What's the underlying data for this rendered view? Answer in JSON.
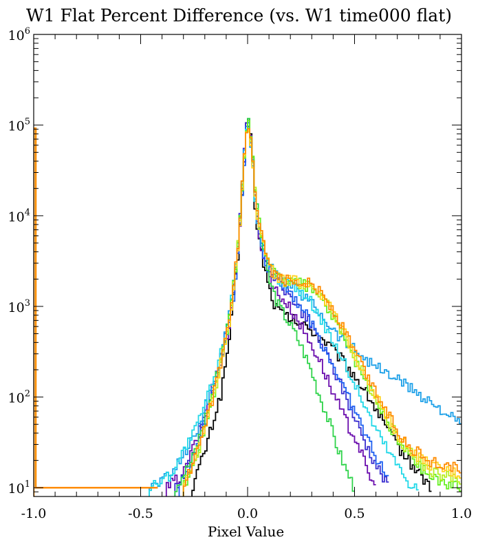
{
  "chart_data": {
    "type": "line",
    "title": "W1 Flat Percent Difference (vs. W1 time000 flat)",
    "xlabel": "Pixel Value",
    "ylabel": "",
    "xlim": [
      -1.0,
      1.0
    ],
    "ylim": [
      8,
      1000000
    ],
    "yscale": "log",
    "grid": false,
    "x_ticks": [
      "-1.0",
      "-0.5",
      "0.0",
      "0.5",
      "1.0"
    ],
    "y_ticks": [
      {
        "base": "10",
        "exp": "1"
      },
      {
        "base": "10",
        "exp": "2"
      },
      {
        "base": "10",
        "exp": "3"
      },
      {
        "base": "10",
        "exp": "4"
      },
      {
        "base": "10",
        "exp": "5"
      },
      {
        "base": "10",
        "exp": "6"
      }
    ],
    "series": [
      {
        "color": "#000000",
        "points": [
          [
            -0.26,
            10
          ],
          [
            -0.2,
            25
          ],
          [
            -0.12,
            120
          ],
          [
            -0.08,
            550
          ],
          [
            -0.04,
            4500
          ],
          [
            -0.02,
            30000
          ],
          [
            0.0,
            150000
          ],
          [
            0.02,
            60000
          ],
          [
            0.04,
            8000
          ],
          [
            0.07,
            3500
          ],
          [
            0.1,
            1600
          ],
          [
            0.13,
            1000
          ],
          [
            0.17,
            800
          ],
          [
            0.22,
            700
          ],
          [
            0.3,
            550
          ],
          [
            0.38,
            380
          ],
          [
            0.46,
            230
          ],
          [
            0.52,
            150
          ],
          [
            0.58,
            90
          ],
          [
            0.63,
            55
          ],
          [
            0.68,
            35
          ],
          [
            0.74,
            22
          ],
          [
            0.8,
            15
          ],
          [
            0.86,
            10
          ]
        ]
      },
      {
        "color": "#6a0dad",
        "points": [
          [
            -0.38,
            10
          ],
          [
            -0.3,
            14
          ],
          [
            -0.22,
            45
          ],
          [
            -0.14,
            200
          ],
          [
            -0.08,
            700
          ],
          [
            -0.04,
            5000
          ],
          [
            -0.02,
            32000
          ],
          [
            0.0,
            130000
          ],
          [
            0.02,
            55000
          ],
          [
            0.04,
            10000
          ],
          [
            0.07,
            4000
          ],
          [
            0.1,
            2200
          ],
          [
            0.14,
            1400
          ],
          [
            0.18,
            1100
          ],
          [
            0.23,
            750
          ],
          [
            0.28,
            450
          ],
          [
            0.34,
            250
          ],
          [
            0.4,
            110
          ],
          [
            0.46,
            55
          ],
          [
            0.52,
            30
          ],
          [
            0.56,
            15
          ],
          [
            0.6,
            10
          ]
        ]
      },
      {
        "color": "#3b2fd0",
        "points": [
          [
            -0.34,
            10
          ],
          [
            -0.26,
            20
          ],
          [
            -0.18,
            80
          ],
          [
            -0.12,
            300
          ],
          [
            -0.08,
            900
          ],
          [
            -0.04,
            6000
          ],
          [
            -0.02,
            35000
          ],
          [
            0.0,
            135000
          ],
          [
            0.02,
            60000
          ],
          [
            0.04,
            12000
          ],
          [
            0.07,
            4500
          ],
          [
            0.1,
            2600
          ],
          [
            0.15,
            1800
          ],
          [
            0.2,
            1300
          ],
          [
            0.26,
            850
          ],
          [
            0.32,
            500
          ],
          [
            0.38,
            260
          ],
          [
            0.44,
            130
          ],
          [
            0.5,
            60
          ],
          [
            0.56,
            28
          ],
          [
            0.62,
            15
          ],
          [
            0.66,
            10
          ]
        ]
      },
      {
        "color": "#1e5ff0",
        "points": [
          [
            -0.32,
            10
          ],
          [
            -0.24,
            25
          ],
          [
            -0.16,
            110
          ],
          [
            -0.1,
            400
          ],
          [
            -0.06,
            1500
          ],
          [
            -0.03,
            12000
          ],
          [
            -0.01,
            60000
          ],
          [
            0.0,
            128000
          ],
          [
            0.02,
            58000
          ],
          [
            0.04,
            11000
          ],
          [
            0.07,
            4200
          ],
          [
            0.1,
            2500
          ],
          [
            0.15,
            1900
          ],
          [
            0.2,
            1500
          ],
          [
            0.25,
            1000
          ],
          [
            0.3,
            650
          ],
          [
            0.36,
            350
          ],
          [
            0.42,
            180
          ],
          [
            0.48,
            90
          ],
          [
            0.54,
            45
          ],
          [
            0.6,
            22
          ],
          [
            0.66,
            12
          ]
        ]
      },
      {
        "color": "#1ca0e8",
        "points": [
          [
            -0.46,
            10
          ],
          [
            -0.36,
            14
          ],
          [
            -0.24,
            40
          ],
          [
            -0.14,
            200
          ],
          [
            -0.08,
            900
          ],
          [
            -0.04,
            6000
          ],
          [
            -0.02,
            35000
          ],
          [
            0.0,
            120000
          ],
          [
            0.02,
            55000
          ],
          [
            0.04,
            11000
          ],
          [
            0.07,
            4500
          ],
          [
            0.1,
            2800
          ],
          [
            0.15,
            2000
          ],
          [
            0.2,
            1700
          ],
          [
            0.25,
            1400
          ],
          [
            0.3,
            1100
          ],
          [
            0.35,
            800
          ],
          [
            0.4,
            560
          ],
          [
            0.45,
            420
          ],
          [
            0.5,
            340
          ],
          [
            0.55,
            270
          ],
          [
            0.6,
            220
          ],
          [
            0.65,
            180
          ],
          [
            0.7,
            160
          ],
          [
            0.75,
            130
          ],
          [
            0.8,
            110
          ],
          [
            0.85,
            90
          ],
          [
            0.9,
            75
          ],
          [
            0.95,
            60
          ],
          [
            1.0,
            48
          ]
        ]
      },
      {
        "color": "#22d8e8",
        "points": [
          [
            -0.46,
            10
          ],
          [
            -0.36,
            14
          ],
          [
            -0.24,
            45
          ],
          [
            -0.14,
            210
          ],
          [
            -0.08,
            950
          ],
          [
            -0.04,
            6500
          ],
          [
            -0.02,
            36000
          ],
          [
            0.0,
            118000
          ],
          [
            0.02,
            55000
          ],
          [
            0.04,
            11500
          ],
          [
            0.07,
            4700
          ],
          [
            0.1,
            2700
          ],
          [
            0.15,
            2000
          ],
          [
            0.2,
            1800
          ],
          [
            0.25,
            1500
          ],
          [
            0.3,
            1100
          ],
          [
            0.35,
            700
          ],
          [
            0.4,
            420
          ],
          [
            0.45,
            250
          ],
          [
            0.5,
            140
          ],
          [
            0.55,
            80
          ],
          [
            0.6,
            45
          ],
          [
            0.65,
            28
          ],
          [
            0.7,
            18
          ],
          [
            0.75,
            12
          ],
          [
            0.8,
            10
          ]
        ]
      },
      {
        "color": "#2fd34a",
        "points": [
          [
            -0.34,
            10
          ],
          [
            -0.26,
            20
          ],
          [
            -0.18,
            80
          ],
          [
            -0.12,
            300
          ],
          [
            -0.08,
            900
          ],
          [
            -0.04,
            6000
          ],
          [
            -0.02,
            34000
          ],
          [
            0.0,
            125000
          ],
          [
            0.02,
            60000
          ],
          [
            0.04,
            14000
          ],
          [
            0.07,
            5000
          ],
          [
            0.1,
            2000
          ],
          [
            0.14,
            1100
          ],
          [
            0.18,
            750
          ],
          [
            0.22,
            520
          ],
          [
            0.26,
            330
          ],
          [
            0.3,
            190
          ],
          [
            0.34,
            100
          ],
          [
            0.38,
            55
          ],
          [
            0.42,
            28
          ],
          [
            0.46,
            16
          ],
          [
            0.5,
            10
          ]
        ]
      },
      {
        "color": "#66ee22",
        "points": [
          [
            -0.3,
            10
          ],
          [
            -0.22,
            30
          ],
          [
            -0.14,
            160
          ],
          [
            -0.08,
            800
          ],
          [
            -0.04,
            6000
          ],
          [
            -0.02,
            34000
          ],
          [
            0.0,
            120000
          ],
          [
            0.02,
            58000
          ],
          [
            0.04,
            13000
          ],
          [
            0.07,
            6000
          ],
          [
            0.1,
            3000
          ],
          [
            0.15,
            2100
          ],
          [
            0.2,
            1900
          ],
          [
            0.25,
            1800
          ],
          [
            0.3,
            1600
          ],
          [
            0.35,
            1200
          ],
          [
            0.4,
            750
          ],
          [
            0.45,
            450
          ],
          [
            0.5,
            260
          ],
          [
            0.55,
            150
          ],
          [
            0.6,
            90
          ],
          [
            0.65,
            55
          ],
          [
            0.7,
            35
          ],
          [
            0.75,
            24
          ],
          [
            0.8,
            18
          ],
          [
            0.85,
            14
          ],
          [
            0.9,
            12
          ],
          [
            0.95,
            11
          ],
          [
            1.0,
            10
          ]
        ]
      },
      {
        "color": "#b8ee22",
        "points": [
          [
            -0.3,
            10
          ],
          [
            -0.22,
            30
          ],
          [
            -0.14,
            160
          ],
          [
            -0.08,
            800
          ],
          [
            -0.04,
            6000
          ],
          [
            -0.02,
            33000
          ],
          [
            0.0,
            115000
          ],
          [
            0.02,
            56000
          ],
          [
            0.04,
            12500
          ],
          [
            0.07,
            5500
          ],
          [
            0.1,
            2900
          ],
          [
            0.15,
            2000
          ],
          [
            0.2,
            1850
          ],
          [
            0.25,
            1850
          ],
          [
            0.3,
            1700
          ],
          [
            0.35,
            1300
          ],
          [
            0.4,
            820
          ],
          [
            0.45,
            500
          ],
          [
            0.5,
            290
          ],
          [
            0.55,
            165
          ],
          [
            0.6,
            100
          ],
          [
            0.65,
            60
          ],
          [
            0.7,
            38
          ],
          [
            0.75,
            26
          ],
          [
            0.8,
            20
          ],
          [
            0.85,
            16
          ],
          [
            0.9,
            14
          ],
          [
            0.95,
            13
          ],
          [
            1.0,
            12
          ]
        ]
      },
      {
        "color": "#ffd21e",
        "points": [
          [
            -0.3,
            10
          ],
          [
            -0.22,
            30
          ],
          [
            -0.14,
            160
          ],
          [
            -0.08,
            800
          ],
          [
            -0.04,
            6000
          ],
          [
            -0.02,
            33000
          ],
          [
            0.0,
            112000
          ],
          [
            0.02,
            55000
          ],
          [
            0.04,
            12000
          ],
          [
            0.07,
            5300
          ],
          [
            0.1,
            2800
          ],
          [
            0.15,
            2000
          ],
          [
            0.2,
            1900
          ],
          [
            0.25,
            1900
          ],
          [
            0.3,
            1750
          ],
          [
            0.35,
            1350
          ],
          [
            0.4,
            850
          ],
          [
            0.45,
            520
          ],
          [
            0.5,
            300
          ],
          [
            0.55,
            175
          ],
          [
            0.6,
            105
          ],
          [
            0.65,
            65
          ],
          [
            0.7,
            40
          ],
          [
            0.75,
            28
          ],
          [
            0.8,
            22
          ],
          [
            0.85,
            18
          ],
          [
            0.9,
            16
          ],
          [
            0.95,
            15
          ],
          [
            1.0,
            14
          ]
        ]
      },
      {
        "color": "#ff8c00",
        "points": [
          [
            -0.3,
            10
          ],
          [
            -0.22,
            30
          ],
          [
            -0.14,
            160
          ],
          [
            -0.08,
            800
          ],
          [
            -0.04,
            6000
          ],
          [
            -0.02,
            32000
          ],
          [
            0.0,
            110000
          ],
          [
            0.02,
            54000
          ],
          [
            0.04,
            12000
          ],
          [
            0.07,
            5200
          ],
          [
            0.1,
            2700
          ],
          [
            0.15,
            2000
          ],
          [
            0.2,
            1900
          ],
          [
            0.25,
            1950
          ],
          [
            0.3,
            1800
          ],
          [
            0.35,
            1400
          ],
          [
            0.4,
            900
          ],
          [
            0.45,
            560
          ],
          [
            0.5,
            330
          ],
          [
            0.55,
            190
          ],
          [
            0.6,
            115
          ],
          [
            0.65,
            70
          ],
          [
            0.7,
            45
          ],
          [
            0.75,
            30
          ],
          [
            0.8,
            24
          ],
          [
            0.85,
            20
          ],
          [
            0.9,
            18
          ],
          [
            0.95,
            17
          ],
          [
            1.0,
            16
          ]
        ]
      }
    ],
    "edge_spike": {
      "x": -1.0,
      "value": 92000,
      "color": "#ff8c00"
    }
  }
}
